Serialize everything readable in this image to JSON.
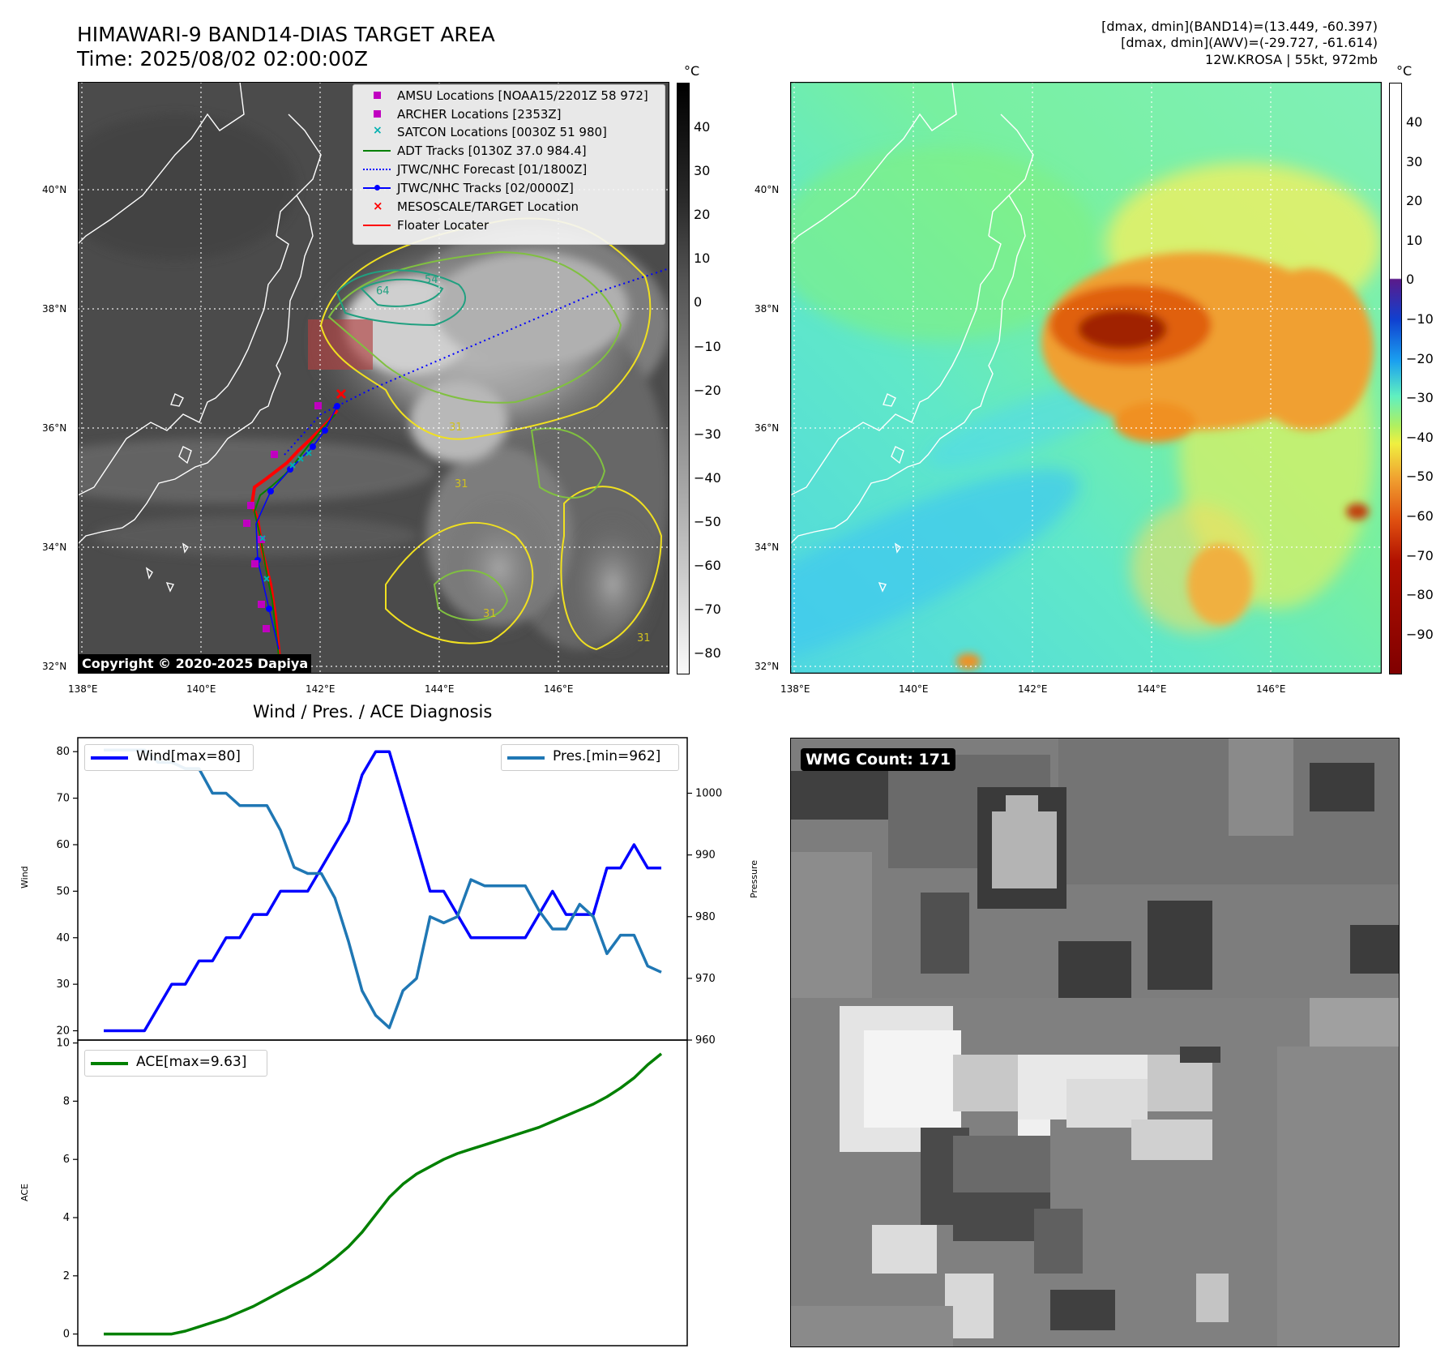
{
  "header": {
    "title_line1": "HIMAWARI-9 BAND14-DIAS TARGET AREA",
    "title_line2": "Time: 2025/08/02 02:00:00Z",
    "info_line1": "[dmax, dmin](BAND14)=(13.449, -60.397)",
    "info_line2": "[dmax, dmin](AWV)=(-29.727, -61.614)",
    "info_line3": "12W.KROSA | 55kt, 972mb"
  },
  "map": {
    "lat_labels": [
      "40°N",
      "38°N",
      "36°N",
      "34°N",
      "32°N"
    ],
    "lon_labels": [
      "138°E",
      "140°E",
      "142°E",
      "144°E",
      "146°E"
    ],
    "copyright": "Copyright © 2020-2025 Dapiya",
    "contour_labels": [
      "64",
      "54",
      "31",
      "31",
      "31",
      "31"
    ]
  },
  "legend": {
    "items": [
      {
        "label": "AMSU Locations [NOAA15/2201Z 58 972]",
        "symbol": "square",
        "color": "#c000c0"
      },
      {
        "label": "ARCHER Locations [2353Z]",
        "symbol": "square",
        "color": "#c000c0"
      },
      {
        "label": "SATCON Locations [0030Z 51 980]",
        "symbol": "x",
        "color": "#00b0b0"
      },
      {
        "label": "ADT Tracks [0130Z 37.0 984.4]",
        "symbol": "line",
        "color": "#008000"
      },
      {
        "label": "JTWC/NHC Forecast [01/1800Z]",
        "symbol": "dotted",
        "color": "#0000ff"
      },
      {
        "label": "JTWC/NHC Tracks [02/0000Z]",
        "symbol": "line-dot",
        "color": "#0000ff"
      },
      {
        "label": "MESOSCALE/TARGET Location",
        "symbol": "x",
        "color": "#ff0000"
      },
      {
        "label": "Floater Locater",
        "symbol": "line",
        "color": "#ff0000"
      }
    ]
  },
  "colorbar_left": {
    "unit": "°C",
    "ticks": [
      "40",
      "30",
      "20",
      "10",
      "0",
      "−10",
      "−20",
      "−30",
      "−40",
      "−50",
      "−60",
      "−70",
      "−80"
    ]
  },
  "colorbar_right": {
    "unit": "°C",
    "ticks": [
      "40",
      "30",
      "20",
      "10",
      "0",
      "−10",
      "−20",
      "−30",
      "−40",
      "−50",
      "−60",
      "−70",
      "−80",
      "−90"
    ],
    "colors": {
      "warm_top": "#ffffff",
      "zero": "#5a1a8a",
      "minus10": "#1040d0",
      "minus20": "#1aa0f0",
      "minus30": "#60f0c0",
      "minus40": "#f0f040",
      "minus50": "#f09020",
      "minus60": "#d04010",
      "minus70": "#900000",
      "minus90": "#800000"
    }
  },
  "diagnosis": {
    "title": "Wind / Pres. / ACE Diagnosis",
    "wind_legend": "Wind[max=80]",
    "pres_legend": "Pres.[min=962]",
    "ace_legend": "ACE[max=9.63]",
    "wind_ylabel": "Wind",
    "pres_ylabel": "Pressure",
    "ace_ylabel": "ACE"
  },
  "wmg": {
    "label": "WMG Count: 171"
  },
  "chart_data": [
    {
      "type": "line",
      "title": "Wind / Pres. / ACE Diagnosis",
      "ylabel": "Wind",
      "ylim": [
        18,
        83
      ],
      "y_ticks": [
        20,
        30,
        40,
        50,
        60,
        70,
        80
      ],
      "series": [
        {
          "name": "Wind[max=80]",
          "color": "#0000ff",
          "values": [
            20,
            20,
            20,
            20,
            25,
            30,
            30,
            35,
            35,
            40,
            40,
            45,
            45,
            50,
            50,
            50,
            55,
            60,
            65,
            75,
            80,
            80,
            70,
            60,
            50,
            50,
            45,
            40,
            40,
            40,
            40,
            40,
            45,
            50,
            45,
            45,
            45,
            55,
            55,
            60,
            55,
            55
          ]
        }
      ]
    },
    {
      "type": "line",
      "ylabel": "Pressure",
      "ylim": [
        960,
        1009
      ],
      "y_ticks": [
        960,
        970,
        980,
        990,
        1000
      ],
      "series": [
        {
          "name": "Pres.[min=962]",
          "color": "#1f77b4",
          "values": [
            1007,
            1007,
            1007,
            1007,
            1005,
            1005,
            1004,
            1004,
            1000,
            1000,
            998,
            998,
            998,
            994,
            988,
            987,
            987,
            983,
            976,
            968,
            964,
            962,
            968,
            970,
            980,
            979,
            980,
            986,
            985,
            985,
            985,
            985,
            981,
            978,
            978,
            982,
            980,
            974,
            977,
            977,
            972,
            971
          ]
        }
      ]
    },
    {
      "type": "line",
      "ylabel": "ACE",
      "ylim": [
        -0.4,
        10.1
      ],
      "y_ticks": [
        0,
        2,
        4,
        6,
        8,
        10
      ],
      "series": [
        {
          "name": "ACE[max=9.63]",
          "color": "#008000",
          "values": [
            0,
            0,
            0,
            0,
            0,
            0,
            0.1,
            0.25,
            0.4,
            0.55,
            0.75,
            0.95,
            1.2,
            1.45,
            1.7,
            1.95,
            2.25,
            2.6,
            3.0,
            3.5,
            4.1,
            4.7,
            5.15,
            5.5,
            5.75,
            6.0,
            6.2,
            6.35,
            6.5,
            6.65,
            6.8,
            6.95,
            7.1,
            7.3,
            7.5,
            7.7,
            7.9,
            8.15,
            8.45,
            8.8,
            9.25,
            9.63
          ]
        }
      ]
    }
  ]
}
